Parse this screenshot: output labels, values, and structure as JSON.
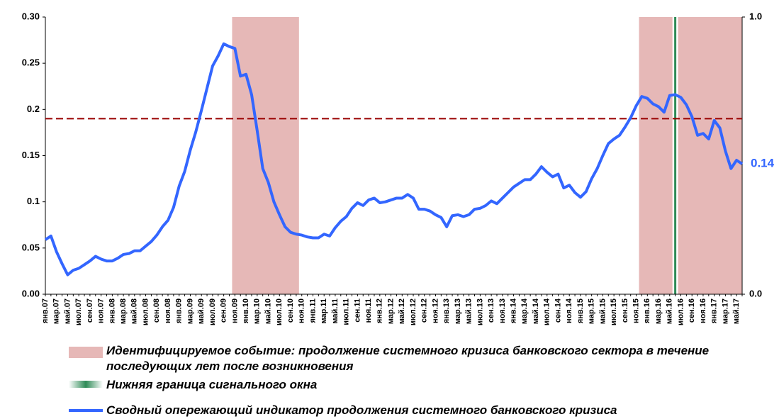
{
  "chart_data": {
    "type": "line",
    "categories": [
      "янв.07",
      null,
      "мар.07",
      null,
      "май.07",
      null,
      "июл.07",
      null,
      "сен.07",
      null,
      "ноя.07",
      null,
      "янв.08",
      null,
      "мар.08",
      null,
      "май.08",
      null,
      "июл.08",
      null,
      "сен.08",
      null,
      "ноя.08",
      null,
      "янв.09",
      null,
      "мар.09",
      null,
      "май.09",
      null,
      "июл.09",
      null,
      "сен.09",
      null,
      "ноя.09",
      null,
      "янв.10",
      null,
      "мар.10",
      null,
      "май.10",
      null,
      "июл.10",
      null,
      "сен.10",
      null,
      "ноя.10",
      null,
      "янв.11",
      null,
      "мар.11",
      null,
      "май.11",
      null,
      "июл.11",
      null,
      "сен.11",
      null,
      "ноя.11",
      null,
      "янв.12",
      null,
      "мар.12",
      null,
      "май.12",
      null,
      "июл.12",
      null,
      "сен.12",
      null,
      "ноя.12",
      null,
      "янв.13",
      null,
      "мар.13",
      null,
      "май.13",
      null,
      "июл.13",
      null,
      "сен.13",
      null,
      "ноя.13",
      null,
      "янв.14",
      null,
      "мар.14",
      null,
      "май.14",
      null,
      "июл.14",
      null,
      "сен.14",
      null,
      "ноя.14",
      null,
      "янв.15",
      null,
      "мар.15",
      null,
      "май.15",
      null,
      "июл.15",
      null,
      "сен.15",
      null,
      "ноя.15",
      null,
      "янв.16",
      null,
      "мар.16",
      null,
      "май.16",
      null,
      "июл.16",
      null,
      "сен.16",
      null,
      "ноя.16",
      null,
      "янв.17",
      null,
      "мар.17",
      null,
      "май.17",
      null
    ],
    "series": [
      {
        "name": "Сводный опережающий индикатор продолжения системного банковского кризиса",
        "color": "#3366ff",
        "values": [
          0.059,
          0.063,
          0.046,
          0.033,
          0.021,
          0.026,
          0.028,
          0.032,
          0.036,
          0.041,
          0.038,
          0.036,
          0.036,
          0.039,
          0.043,
          0.044,
          0.047,
          0.047,
          0.052,
          0.057,
          0.064,
          0.073,
          0.08,
          0.094,
          0.117,
          0.133,
          0.156,
          0.176,
          0.199,
          0.223,
          0.247,
          0.258,
          0.271,
          0.268,
          0.266,
          0.236,
          0.238,
          0.216,
          0.177,
          0.136,
          0.121,
          0.1,
          0.086,
          0.073,
          0.067,
          0.065,
          0.064,
          0.062,
          0.061,
          0.061,
          0.065,
          0.063,
          0.072,
          0.079,
          0.084,
          0.093,
          0.099,
          0.096,
          0.102,
          0.104,
          0.099,
          0.1,
          0.102,
          0.104,
          0.104,
          0.108,
          0.104,
          0.092,
          0.092,
          0.09,
          0.086,
          0.083,
          0.073,
          0.085,
          0.086,
          0.084,
          0.086,
          0.092,
          0.093,
          0.096,
          0.101,
          0.098,
          0.104,
          0.11,
          0.116,
          0.12,
          0.124,
          0.124,
          0.13,
          0.138,
          0.132,
          0.127,
          0.13,
          0.115,
          0.118,
          0.11,
          0.105,
          0.111,
          0.125,
          0.136,
          0.15,
          0.163,
          0.168,
          0.172,
          0.181,
          0.191,
          0.204,
          0.214,
          0.212,
          0.206,
          0.203,
          0.197,
          0.215,
          0.216,
          0.213,
          0.205,
          0.192,
          0.172,
          0.174,
          0.168,
          0.188,
          0.18,
          0.155,
          0.136,
          0.145,
          0.141
        ],
        "value_labels": [
          null,
          null,
          null,
          null,
          null,
          null,
          null,
          null,
          null,
          null,
          null,
          null,
          null,
          null,
          null,
          null,
          null,
          null,
          null,
          null,
          null,
          null,
          null,
          null,
          null,
          null,
          null,
          null,
          null,
          null,
          null,
          null,
          null,
          null,
          null,
          null,
          null,
          null,
          null,
          null,
          null,
          null,
          null,
          null,
          null,
          null,
          null,
          null,
          null,
          null,
          null,
          null,
          null,
          null,
          null,
          null,
          null,
          null,
          null,
          null,
          null,
          null,
          null,
          null,
          null,
          null,
          null,
          null,
          null,
          null,
          null,
          null,
          null,
          null,
          null,
          null,
          null,
          null,
          null,
          null,
          null,
          null,
          null,
          null,
          null,
          null,
          null,
          null,
          null,
          null,
          null,
          null,
          null,
          null,
          null,
          null,
          null,
          null,
          null,
          null,
          null,
          null,
          null,
          null,
          null,
          null,
          null,
          null,
          null,
          null,
          null,
          null,
          null,
          null,
          null,
          null,
          null,
          null,
          null,
          null,
          null,
          null,
          null,
          null,
          null,
          "0.14"
        ]
      }
    ],
    "threshold": {
      "value": 0.19,
      "color": "#990000"
    },
    "shaded": {
      "label": "Идентифицируемое событие: продолжение системного кризиса банковского сектора в течение последующих лет после возникновения",
      "color": "#e6b8b7",
      "ranges": [
        [
          33.5,
          45.5
        ],
        [
          106.5,
          112.5
        ],
        [
          113.5,
          125
        ]
      ]
    },
    "window": {
      "label": "Нижняя граница сигнального окна",
      "color": "#2e8b57",
      "x": 113
    },
    "ylim": [
      0,
      0.3
    ],
    "yticks": [
      {
        "value": 0,
        "label": "0.00"
      },
      {
        "value": 0.05,
        "label": "0.05"
      },
      0.1,
      0.15,
      0.2,
      0.25,
      {
        "value": 0.3,
        "label": "0.30"
      }
    ],
    "y2lim": [
      0,
      1
    ],
    "y2ticks": [
      {
        "value": 0,
        "label": "0.0"
      },
      {
        "value": 1,
        "label": "1.0"
      }
    ]
  }
}
